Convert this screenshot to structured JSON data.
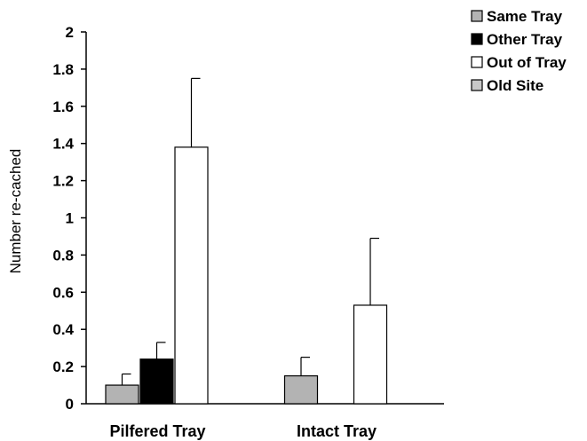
{
  "chart_data": {
    "type": "bar",
    "title": "",
    "xlabel": "",
    "ylabel": "Number re-cached",
    "ylim": [
      0,
      2
    ],
    "yticks": [
      0,
      0.2,
      0.4,
      0.6,
      0.8,
      1,
      1.2,
      1.4,
      1.6,
      1.8,
      2
    ],
    "ytick_labels": [
      "0",
      "0.2",
      "0.4",
      "0.6",
      "0.8",
      "1",
      "1.2",
      "1.4",
      "1.6",
      "1.8",
      "2"
    ],
    "categories": [
      "Pilfered Tray",
      "Intact Tray"
    ],
    "legend_position": "top-right",
    "grid": false,
    "series": [
      {
        "name": "Same Tray",
        "color": "#b3b3b3",
        "values": [
          0.1,
          0.15
        ],
        "errors": [
          0.06,
          0.1
        ]
      },
      {
        "name": "Other Tray",
        "color": "#000000",
        "values": [
          0.24,
          0
        ],
        "errors": [
          0.09,
          0
        ]
      },
      {
        "name": "Out of Tray",
        "color": "#ffffff",
        "values": [
          1.38,
          0.53
        ],
        "errors": [
          0.37,
          0.36
        ]
      },
      {
        "name": "Old Site",
        "color": "#c8c8c8",
        "values": [
          0,
          0
        ],
        "errors": [
          0,
          0
        ]
      }
    ]
  }
}
